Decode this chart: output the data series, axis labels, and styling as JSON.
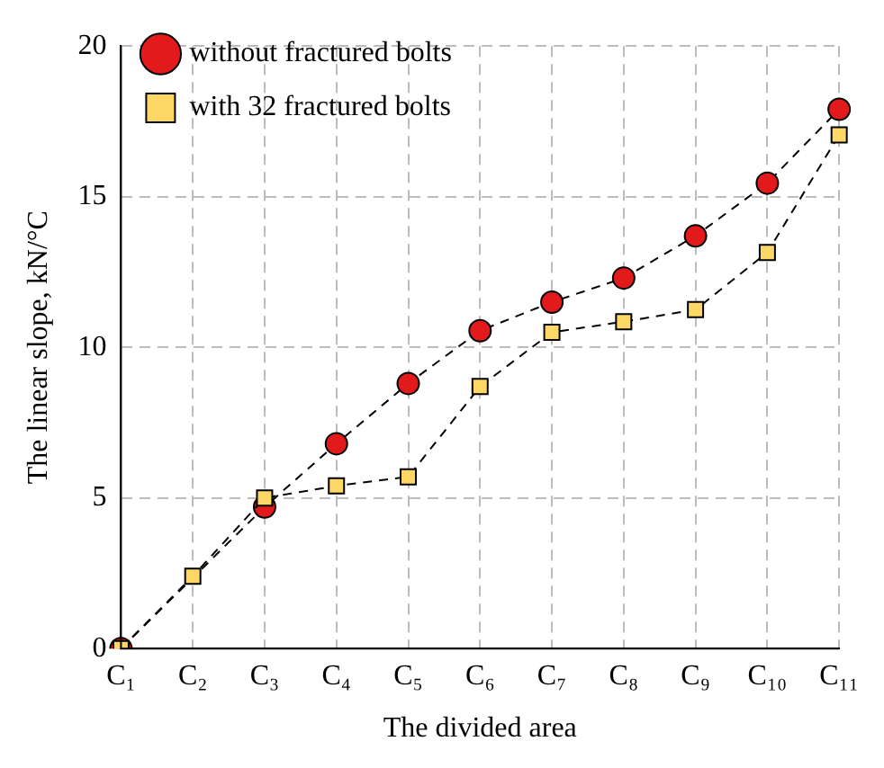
{
  "chart_data": {
    "type": "line",
    "xlabel": "The divided area",
    "ylabel": "The linear slope, kN/°C",
    "categories": [
      "C₁",
      "C₂",
      "C₃",
      "C₄",
      "C₅",
      "C₆",
      "C₇",
      "C₈",
      "C₉",
      "C₁₀",
      "C₁₁"
    ],
    "series": [
      {
        "name": "without fractured bolts",
        "color": "#e31a1c",
        "marker": "circle",
        "values": [
          0,
          null,
          4.7,
          6.8,
          8.8,
          10.55,
          11.5,
          12.3,
          13.7,
          15.45,
          17.9
        ]
      },
      {
        "name": "with 32 fractured bolts",
        "color": "#fdd866",
        "marker": "square",
        "values": [
          0,
          2.4,
          5.0,
          5.4,
          5.7,
          8.7,
          10.5,
          10.85,
          11.25,
          13.15,
          17.05
        ]
      }
    ],
    "ylim": [
      0,
      20
    ],
    "yticks": [
      0,
      5,
      10,
      15,
      20
    ],
    "grid": true,
    "legend": "top left",
    "line_style": "dashed"
  }
}
